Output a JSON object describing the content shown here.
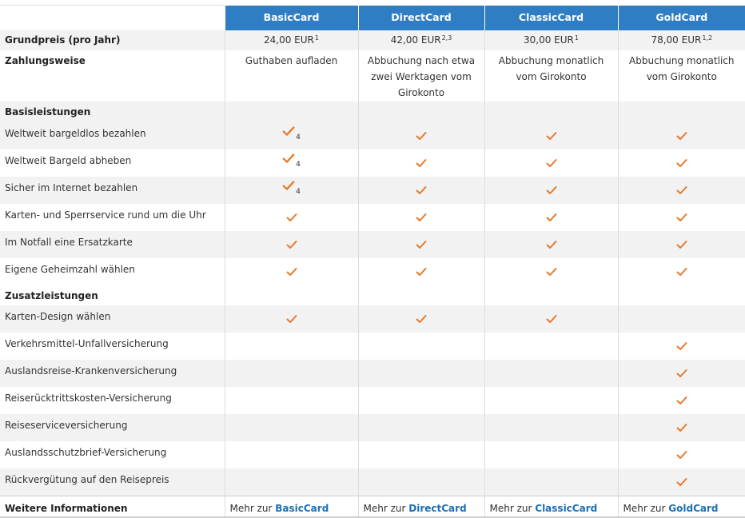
{
  "header": {
    "cards": [
      "BasicCard",
      "DirectCard",
      "ClassicCard",
      "GoldCard"
    ]
  },
  "price": {
    "label": "Grundpreis (pro Jahr)",
    "values": [
      {
        "amount": "24,00 EUR",
        "note": "1"
      },
      {
        "amount": "42,00 EUR",
        "note": "2,3"
      },
      {
        "amount": "30,00 EUR",
        "note": "1"
      },
      {
        "amount": "78,00 EUR",
        "note": "1,2"
      }
    ]
  },
  "payment": {
    "label": "Zahlungsweise",
    "values": [
      [
        "Guthaben aufladen"
      ],
      [
        "Abbuchung nach etwa",
        "zwei Werktagen vom",
        "Girokonto"
      ],
      [
        "Abbuchung monatlich",
        "vom Girokonto"
      ],
      [
        "Abbuchung monatlich",
        "vom Girokonto"
      ]
    ]
  },
  "sections": {
    "basis": "Basisleistungen",
    "zusatz": "Zusatzleistungen"
  },
  "features": [
    {
      "label": "Weltweit bargeldlos bezahlen",
      "included": [
        true,
        true,
        true,
        true
      ],
      "footnote": "4"
    },
    {
      "label": "Weltweit Bargeld abheben",
      "included": [
        true,
        true,
        true,
        true
      ],
      "footnote": "4"
    },
    {
      "label": "Sicher im Internet bezahlen",
      "included": [
        true,
        true,
        true,
        true
      ],
      "footnote": "4"
    },
    {
      "label": "Karten- und Sperrservice rund um die Uhr",
      "included": [
        true,
        true,
        true,
        true
      ]
    },
    {
      "label": "Im Notfall eine Ersatzkarte",
      "included": [
        true,
        true,
        true,
        true
      ]
    },
    {
      "label": "Eigene Geheimzahl wählen",
      "included": [
        true,
        true,
        true,
        true
      ]
    },
    {
      "label": "Karten-Design wählen",
      "included": [
        true,
        true,
        true,
        false
      ]
    },
    {
      "label": "Verkehrsmittel-Unfallversicherung",
      "included": [
        false,
        false,
        false,
        true
      ]
    },
    {
      "label": "Auslandsreise-Krankenversicherung",
      "included": [
        false,
        false,
        false,
        true
      ]
    },
    {
      "label": "Reiserücktrittskosten-Versicherung",
      "included": [
        false,
        false,
        false,
        true
      ]
    },
    {
      "label": "Reiseserviceversicherung",
      "included": [
        false,
        false,
        false,
        true
      ]
    },
    {
      "label": "Auslandsschutzbrief-Versicherung",
      "included": [
        false,
        false,
        false,
        true
      ]
    },
    {
      "label": "Rückvergütung auf den Reisepreis",
      "included": [
        false,
        false,
        false,
        true
      ]
    }
  ],
  "footer": {
    "label": "Weitere Informationen",
    "prefix": "Mehr zur",
    "links": [
      "BasicCard",
      "DirectCard",
      "ClassicCard",
      "GoldCard"
    ]
  },
  "colors": {
    "header_bg": "#2f7ec4",
    "check": "#e8782a",
    "link": "#1b6fb3",
    "stripe": "#f2f2f2"
  },
  "icons": {
    "included": "checkmark-icon"
  }
}
